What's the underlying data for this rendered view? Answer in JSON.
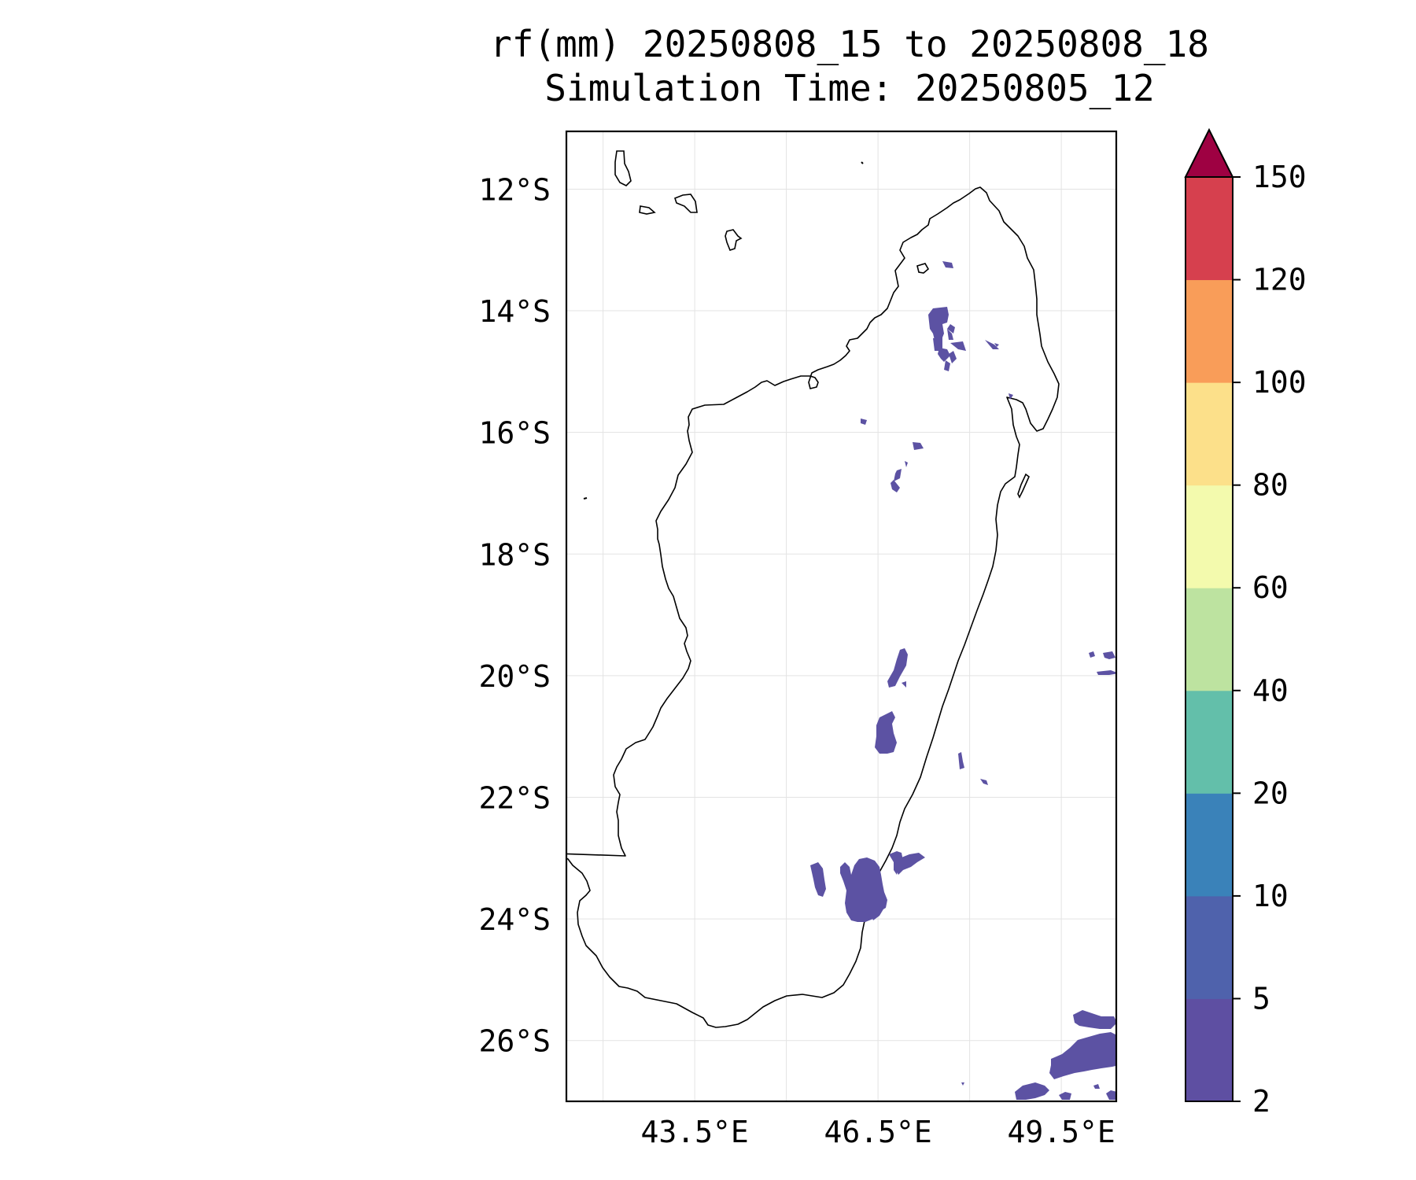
{
  "title": {
    "line1": "rf(mm) 20250808_15 to 20250808_18",
    "line2": "Simulation Time: 20250805_12"
  },
  "map": {
    "lon_range": [
      41.4,
      50.4
    ],
    "lat_range": [
      -27.0,
      -11.05
    ],
    "lat_ticks": [
      {
        "value": -12,
        "label": "12°S"
      },
      {
        "value": -14,
        "label": "14°S"
      },
      {
        "value": -16,
        "label": "16°S"
      },
      {
        "value": -18,
        "label": "18°S"
      },
      {
        "value": -20,
        "label": "20°S"
      },
      {
        "value": -22,
        "label": "22°S"
      },
      {
        "value": -24,
        "label": "24°S"
      },
      {
        "value": -26,
        "label": "26°S"
      }
    ],
    "lon_ticks": [
      {
        "value": 43.5,
        "label": "43.5°E"
      },
      {
        "value": 46.5,
        "label": "46.5°E"
      },
      {
        "value": 49.5,
        "label": "49.5°E"
      }
    ],
    "gridlines": true,
    "rain_color": "#5c52a3",
    "rain_color_alt": "#5061ab"
  },
  "colorbar": {
    "levels": [
      "2",
      "5",
      "10",
      "20",
      "40",
      "60",
      "80",
      "100",
      "120",
      "150"
    ],
    "colors": [
      "#5e4fa2",
      "#4f62ac",
      "#3a82b9",
      "#63bfaa",
      "#bde3a0",
      "#f3faad",
      "#fce08a",
      "#f99d59",
      "#d6404e"
    ],
    "extend_color": "#9e0142",
    "extend": "max"
  }
}
